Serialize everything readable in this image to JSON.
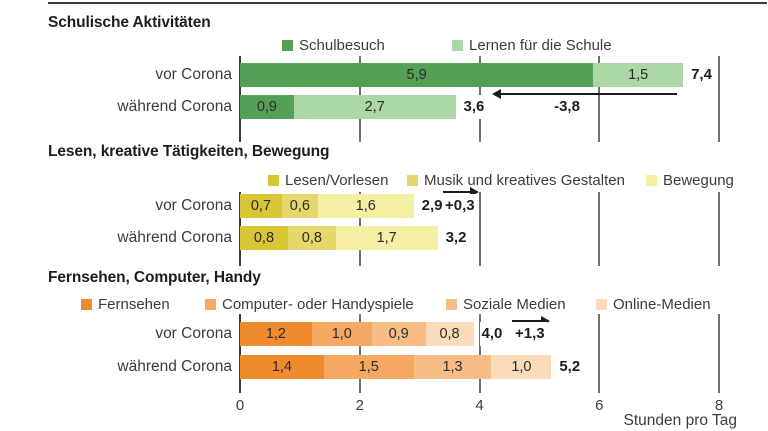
{
  "chart_data": {
    "type": "bar",
    "stacked": true,
    "orientation": "horizontal",
    "xlabel": "Stunden pro Tag",
    "x_ticks": [
      0,
      2,
      4,
      6,
      8
    ],
    "xlim": [
      0,
      8
    ],
    "grid": true,
    "axis_color": "#3c3c3b",
    "gridline_color": "#706f6e",
    "groups": [
      {
        "title": "Schulische Aktivitäten",
        "legend": [
          {
            "label": "Schulbesuch",
            "color": "#55a057"
          },
          {
            "label": "Lernen für die Schule",
            "color": "#abd6a6"
          }
        ],
        "rows": [
          {
            "label": "vor Corona",
            "segments": [
              {
                "value": 5.9,
                "text": "5,9"
              },
              {
                "value": 1.5,
                "text": "1,5"
              }
            ],
            "total": {
              "value": 7.4,
              "text": "7,4"
            }
          },
          {
            "label": "während Corona",
            "segments": [
              {
                "value": 0.9,
                "text": "0,9"
              },
              {
                "value": 2.7,
                "text": "2,7"
              }
            ],
            "total": {
              "value": 3.6,
              "text": "3,6"
            }
          }
        ],
        "change": {
          "value": -3.8,
          "text": "-3,8",
          "direction": "left"
        }
      },
      {
        "title": "Lesen, kreative Tätigkeiten, Bewegung",
        "legend": [
          {
            "label": "Lesen/Vorlesen",
            "color": "#d8c636"
          },
          {
            "label": "Musik und kreatives Gestalten",
            "color": "#e5d76a"
          },
          {
            "label": "Bewegung",
            "color": "#f5efa4"
          }
        ],
        "rows": [
          {
            "label": "vor Corona",
            "segments": [
              {
                "value": 0.7,
                "text": "0,7"
              },
              {
                "value": 0.6,
                "text": "0,6"
              },
              {
                "value": 1.6,
                "text": "1,6"
              }
            ],
            "total": {
              "value": 2.9,
              "text": "2,9"
            }
          },
          {
            "label": "während Corona",
            "segments": [
              {
                "value": 0.8,
                "text": "0,8"
              },
              {
                "value": 0.8,
                "text": "0,8"
              },
              {
                "value": 1.7,
                "text": "1,7"
              }
            ],
            "total": {
              "value": 3.2,
              "text": "3,2"
            }
          }
        ],
        "change": {
          "value": 0.3,
          "text": "+0,3",
          "direction": "right"
        }
      },
      {
        "title": "Fernsehen, Computer, Handy",
        "legend": [
          {
            "label": "Fernsehen",
            "color": "#ef8a2e"
          },
          {
            "label": "Computer- oder Handyspiele",
            "color": "#f4a861"
          },
          {
            "label": "Soziale Medien",
            "color": "#f7bd86"
          },
          {
            "label": "Online-Medien",
            "color": "#fadcba"
          }
        ],
        "rows": [
          {
            "label": "vor Corona",
            "segments": [
              {
                "value": 1.2,
                "text": "1,2"
              },
              {
                "value": 1.0,
                "text": "1,0"
              },
              {
                "value": 0.9,
                "text": "0,9"
              },
              {
                "value": 0.8,
                "text": "0,8"
              }
            ],
            "total": {
              "value": 4.0,
              "text": "4,0"
            }
          },
          {
            "label": "während Corona",
            "segments": [
              {
                "value": 1.4,
                "text": "1,4"
              },
              {
                "value": 1.5,
                "text": "1,5"
              },
              {
                "value": 1.3,
                "text": "1,3"
              },
              {
                "value": 1.0,
                "text": "1,0"
              }
            ],
            "total": {
              "value": 5.2,
              "text": "5,2"
            }
          }
        ],
        "change": {
          "value": 1.3,
          "text": "+1,3",
          "direction": "right"
        }
      }
    ]
  }
}
